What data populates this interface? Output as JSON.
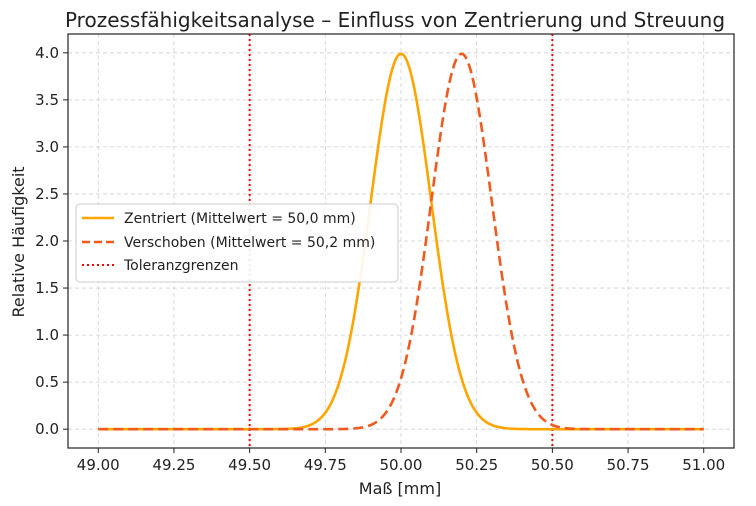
{
  "chart_data": {
    "type": "line",
    "title": "Prozessfähigkeitsanalyse – Einfluss von Zentrierung und Streuung",
    "xlabel": "Maß [mm]",
    "ylabel": "Relative Häufigkeit",
    "xlim": [
      48.9,
      51.1
    ],
    "ylim": [
      -0.2,
      4.2
    ],
    "xticks": [
      "49.00",
      "49.25",
      "49.50",
      "49.75",
      "50.00",
      "50.25",
      "50.50",
      "50.75",
      "51.00"
    ],
    "yticks": [
      "0.0",
      "0.5",
      "1.0",
      "1.5",
      "2.0",
      "2.5",
      "3.0",
      "3.5",
      "4.0"
    ],
    "grid": true,
    "legend_position": "center-left",
    "series": [
      {
        "name": "Zentriert (Mittelwert = 50,0 mm)",
        "color": "#FFA500",
        "style": "solid",
        "x": [
          49.0,
          49.5,
          49.6,
          49.7,
          49.75,
          49.8,
          49.85,
          49.9,
          49.95,
          50.0,
          50.05,
          50.1,
          50.15,
          50.2,
          50.25,
          50.3,
          50.4,
          50.5,
          51.0
        ],
        "y": [
          0.0,
          0.0,
          0.01,
          0.04,
          0.18,
          0.54,
          1.3,
          2.42,
          3.53,
          3.99,
          3.53,
          2.42,
          1.3,
          0.54,
          0.18,
          0.04,
          0.01,
          0.0,
          0.0
        ]
      },
      {
        "name": "Verschoben (Mittelwert = 50,2 mm)",
        "color": "#F05A1E",
        "style": "dashed",
        "x": [
          49.0,
          49.7,
          49.8,
          49.9,
          49.95,
          50.0,
          50.05,
          50.1,
          50.15,
          50.2,
          50.25,
          50.3,
          50.35,
          50.4,
          50.45,
          50.5,
          50.6,
          50.7,
          51.0
        ],
        "y": [
          0.0,
          0.0,
          0.01,
          0.04,
          0.18,
          0.54,
          1.3,
          2.42,
          3.53,
          3.99,
          3.53,
          2.42,
          1.3,
          0.54,
          0.18,
          0.04,
          0.01,
          0.0,
          0.0
        ]
      }
    ],
    "vlines": {
      "name": "Toleranzgrenzen",
      "color": "#FF0000",
      "style": "dotted",
      "x": [
        49.5,
        50.5
      ]
    }
  }
}
